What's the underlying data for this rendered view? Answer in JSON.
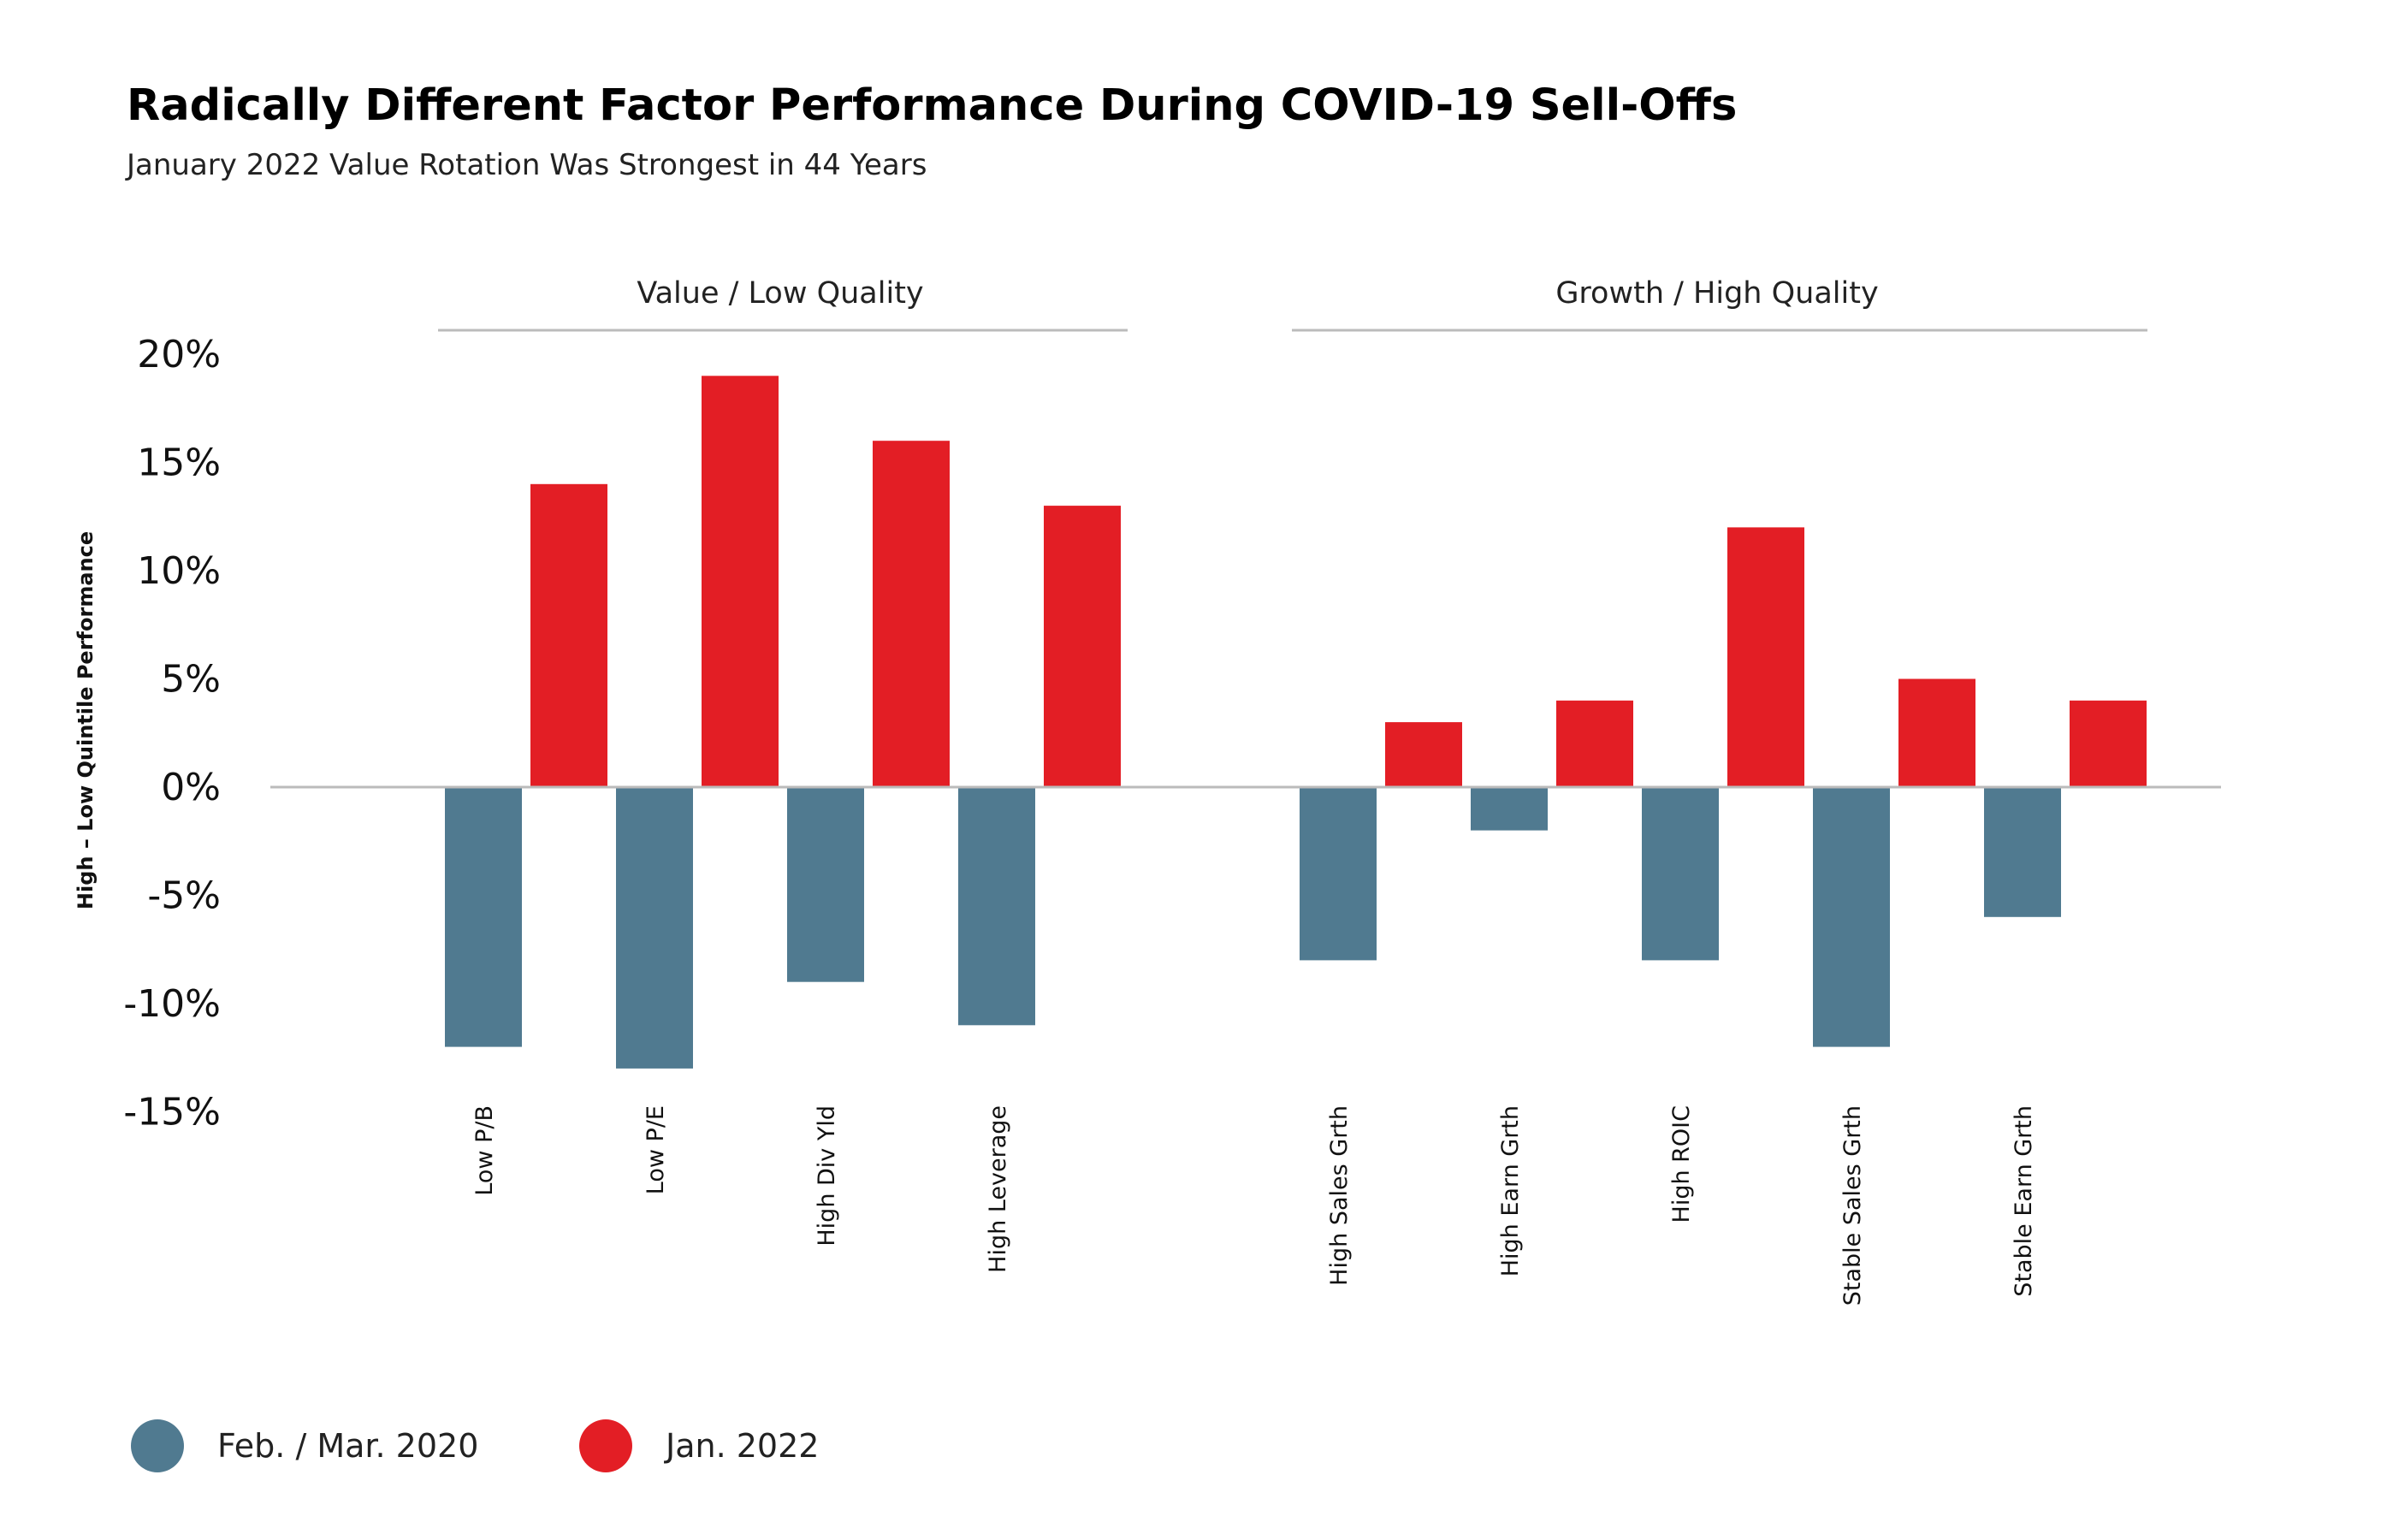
{
  "colors": {
    "title": "#e01e26",
    "series_2020": "#507a90",
    "series_2022": "#e31e25",
    "axis": "#bbbbbb"
  },
  "chart_data": {
    "type": "bar",
    "title": "Radically Different Factor Performance During COVID-19 Sell-Offs",
    "subtitle": "January 2022 Value Rotation Was Strongest in 44 Years",
    "ylabel": "High – Low Quintile Performance",
    "xlabel": "",
    "ylim": [
      -15,
      20
    ],
    "yticks": [
      20,
      15,
      10,
      5,
      0,
      -5,
      -10,
      -15
    ],
    "ytick_labels": [
      "20%",
      "15%",
      "10%",
      "5%",
      "0%",
      "-5%",
      "-10%",
      "-15%"
    ],
    "groups": [
      {
        "label": "Value / Low Quality",
        "categories": [
          "Low P/B",
          "Low P/E",
          "High Div Yld",
          "High Leverage"
        ]
      },
      {
        "label": "Growth / High Quality",
        "categories": [
          "High Sales Grth",
          "High Earn Grth",
          "High ROIC",
          "Stable Sales Grth",
          "Stable Earn Grth"
        ]
      }
    ],
    "categories": [
      "Low P/B",
      "Low P/E",
      "High Div Yld",
      "High Leverage",
      "High Sales Grth",
      "High Earn Grth",
      "High ROIC",
      "Stable Sales Grth",
      "Stable Earn Grth"
    ],
    "series": [
      {
        "name": "Feb. / Mar. 2020",
        "values": [
          -12,
          -13,
          -9,
          -11,
          -8,
          -2,
          -8,
          -12,
          -6
        ]
      },
      {
        "name": "Jan. 2022",
        "values": [
          14,
          19,
          16,
          13,
          3,
          4,
          12,
          5,
          4
        ]
      }
    ],
    "grid": false,
    "legend_position": "bottom-left"
  }
}
